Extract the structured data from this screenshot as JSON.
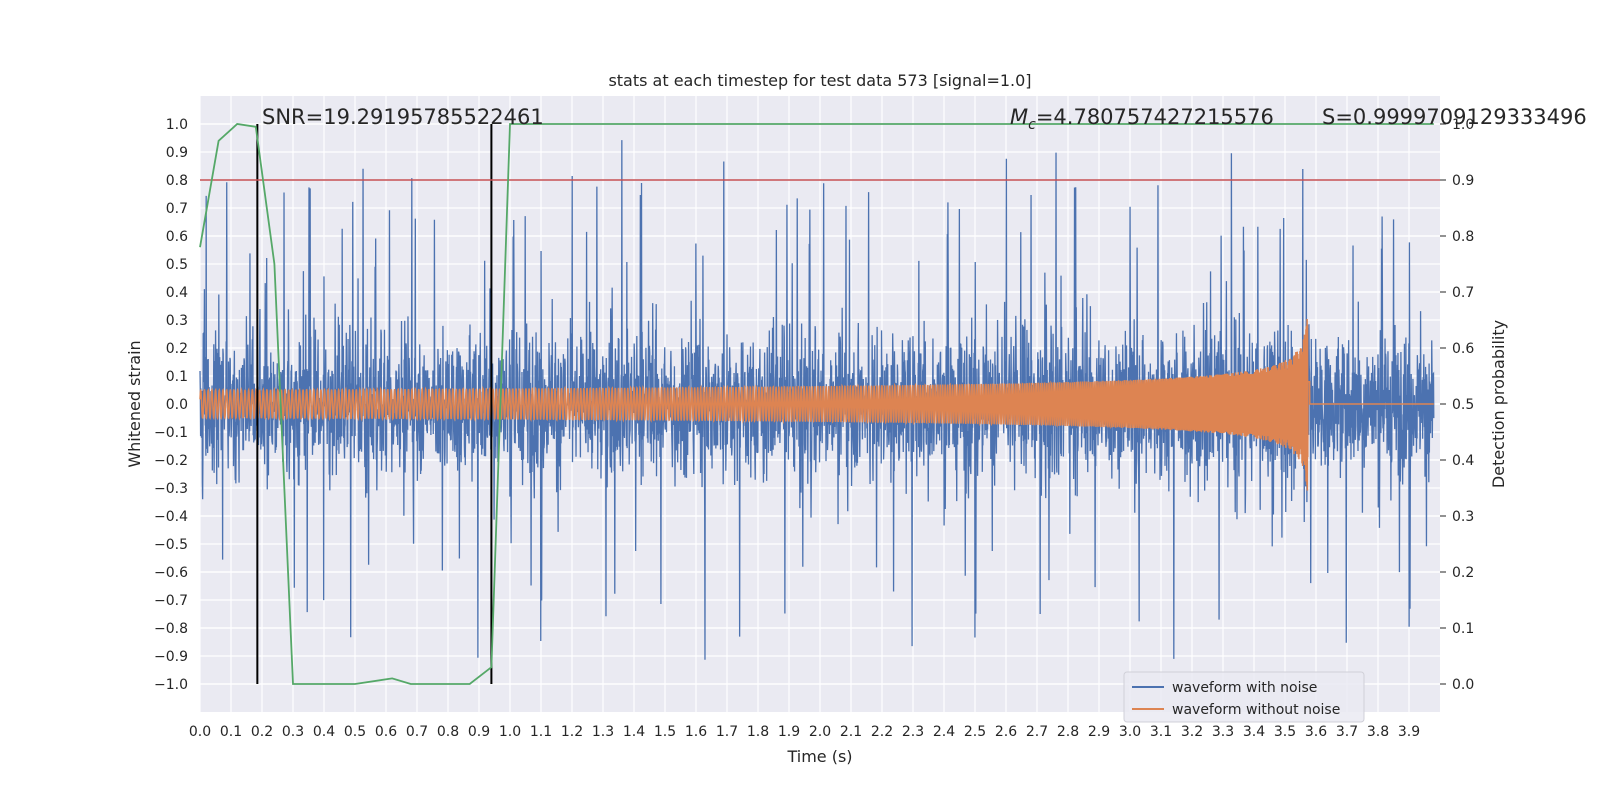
{
  "chart_data": {
    "type": "line",
    "title": "stats at each timestep for test data 573 [signal=1.0]",
    "xlabel": "Time (s)",
    "ylabel": "Whitened strain",
    "ylabel_right": "Detection probability",
    "xlim": [
      0.0,
      4.0
    ],
    "ylim": [
      -1.1,
      1.1
    ],
    "ylim_right": [
      -0.05,
      1.05
    ],
    "x_ticks": [
      "0.0",
      "0.1",
      "0.2",
      "0.3",
      "0.4",
      "0.5",
      "0.6",
      "0.7",
      "0.8",
      "0.9",
      "1.0",
      "1.1",
      "1.2",
      "1.3",
      "1.4",
      "1.5",
      "1.6",
      "1.7",
      "1.8",
      "1.9",
      "2.0",
      "2.1",
      "2.2",
      "2.3",
      "2.4",
      "2.5",
      "2.6",
      "2.7",
      "2.8",
      "2.9",
      "3.0",
      "3.1",
      "3.2",
      "3.3",
      "3.4",
      "3.5",
      "3.6",
      "3.7",
      "3.8",
      "3.9"
    ],
    "y_ticks": [
      "1.0",
      "0.9",
      "0.8",
      "0.7",
      "0.6",
      "0.5",
      "0.4",
      "0.3",
      "0.2",
      "0.1",
      "0.0",
      "−0.1",
      "−0.2",
      "−0.3",
      "−0.4",
      "−0.5",
      "−0.6",
      "−0.7",
      "−0.8",
      "−0.9",
      "−1.0"
    ],
    "y_ticks_right": [
      "1.0",
      "0.9",
      "0.8",
      "0.7",
      "0.6",
      "0.5",
      "0.4",
      "0.3",
      "0.2",
      "0.1",
      "0.0"
    ],
    "annotations": {
      "snr": "SNR=19.29195785522461",
      "mc_symbol": "M",
      "mc_sub": "c",
      "mc_value": "=4.780757427215576",
      "s": "S=0.9999709129333496"
    },
    "threshold": 0.9,
    "markers_x": [
      0.185,
      0.94
    ],
    "series": [
      {
        "name": "waveform with noise",
        "color": "#4c72b0",
        "noise_amplitude": 0.3,
        "t_start": 0.0,
        "t_end": 3.98
      },
      {
        "name": "waveform without noise",
        "color": "#dd8452",
        "chirp_start_amplitude": 0.05,
        "chirp_peak_amplitude": 0.4,
        "t_start": 0.0,
        "merger_time": 3.58,
        "t_end": 3.98
      },
      {
        "name": "detection probability",
        "color": "#55a868",
        "x": [
          0.0,
          0.06,
          0.12,
          0.18,
          0.24,
          0.3,
          0.36,
          0.5,
          0.62,
          0.68,
          0.8,
          0.87,
          0.94,
          1.0,
          3.98
        ],
        "y": [
          0.78,
          0.97,
          1.0,
          0.995,
          0.75,
          0.0,
          0.0,
          0.0,
          0.01,
          0.0,
          0.0,
          0.0,
          0.03,
          1.0,
          1.0
        ]
      }
    ],
    "colors": {
      "background": "#eaeaf2",
      "grid": "#ffffff",
      "threshold": "#c44e52",
      "marker": "#000000"
    }
  }
}
